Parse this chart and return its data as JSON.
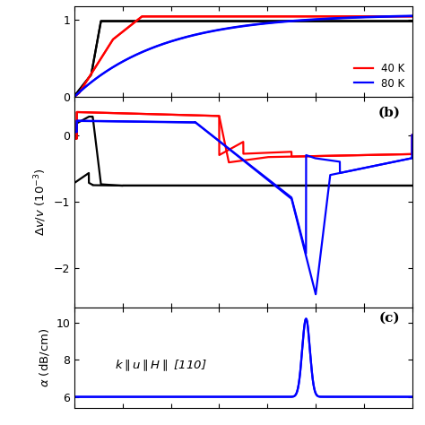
{
  "legend_entries_partial": [
    "40 K",
    "80 K"
  ],
  "legend_colors_partial": [
    "red",
    "blue"
  ],
  "legend_colors": [
    "black",
    "red",
    "blue"
  ],
  "panel_b_label": "(b)",
  "panel_c_label": "(c)",
  "background_color": "#ffffff",
  "line_width": 1.6,
  "xlim": [
    0,
    7.0
  ],
  "panel_a_ylim": [
    0,
    1.18
  ],
  "panel_a_yticks": [
    0,
    1
  ],
  "panel_b_ylim": [
    -2.6,
    0.58
  ],
  "panel_b_yticks": [
    0,
    -1,
    -2
  ],
  "panel_c_ylim": [
    5.4,
    10.8
  ],
  "panel_c_yticks": [
    6,
    8,
    10
  ]
}
